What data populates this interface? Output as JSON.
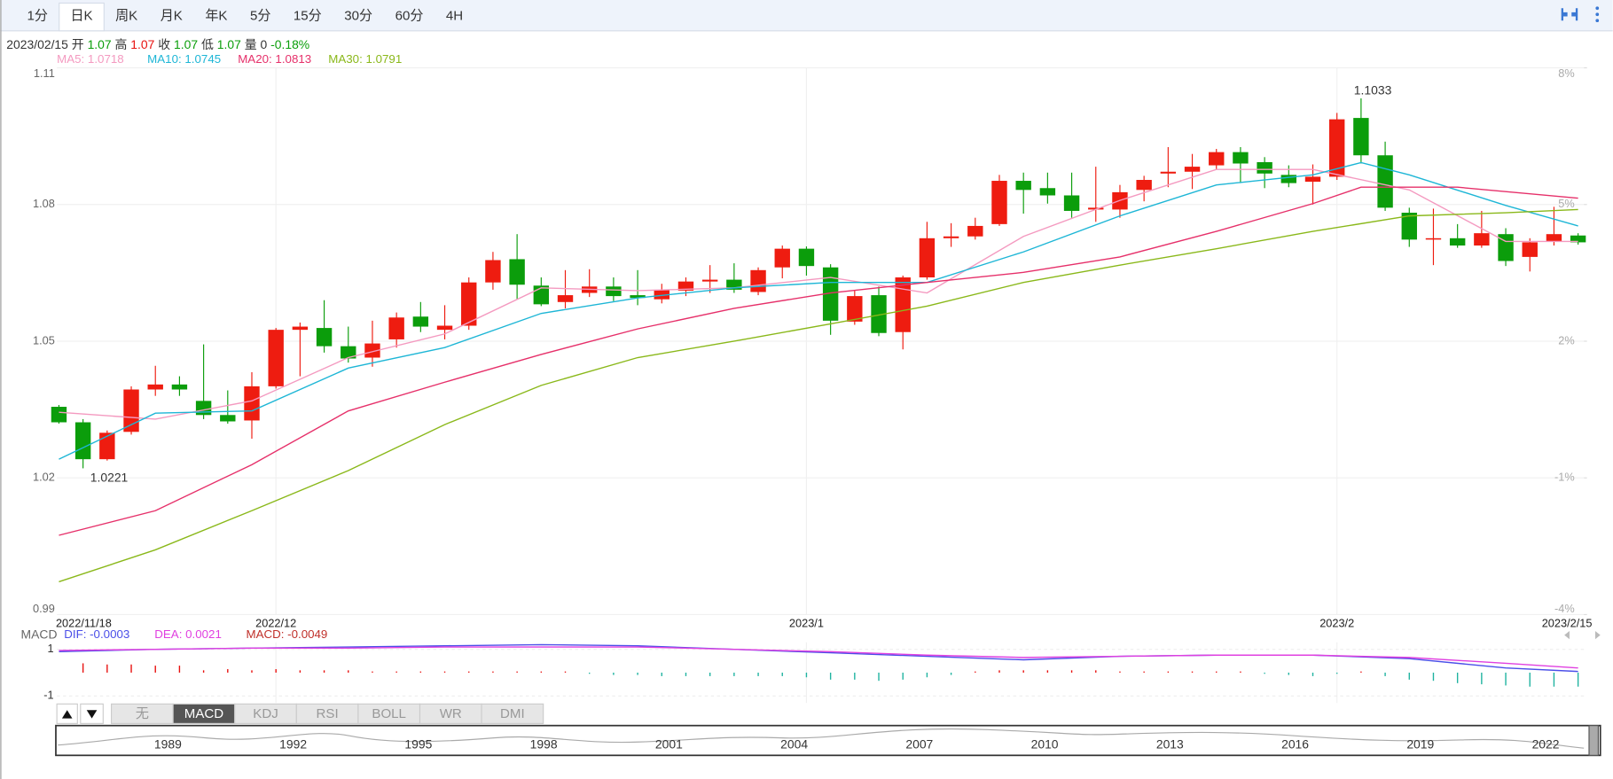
{
  "toolbar": {
    "periods": [
      "1分",
      "日K",
      "周K",
      "月K",
      "年K",
      "5分",
      "15分",
      "30分",
      "60分",
      "4H"
    ],
    "active": "日K"
  },
  "quote": {
    "date": "2023/02/15",
    "fields": [
      {
        "label": "开",
        "value": 1.07,
        "color": "#0a9e0a"
      },
      {
        "label": "高",
        "value": 1.07,
        "color": "#e8110f"
      },
      {
        "label": "收",
        "value": 1.07,
        "color": "#0a9e0a"
      },
      {
        "label": "低",
        "value": 1.07,
        "color": "#0a9e0a"
      },
      {
        "label": "量",
        "value": 0,
        "color": "#333333"
      }
    ],
    "change": "-0.18%",
    "change_color": "#0a9e0a"
  },
  "chart_data": [
    {
      "type": "candlestick",
      "categories": [
        "2022/11/18",
        null,
        null,
        null,
        null,
        null,
        null,
        null,
        null,
        "2022/12",
        null,
        null,
        null,
        null,
        null,
        null,
        null,
        null,
        null,
        null,
        null,
        null,
        null,
        null,
        null,
        null,
        null,
        null,
        null,
        null,
        null,
        "2023/1",
        null,
        null,
        null,
        null,
        null,
        null,
        null,
        null,
        null,
        null,
        null,
        null,
        null,
        null,
        null,
        null,
        null,
        null,
        null,
        null,
        null,
        "2023/2",
        null,
        null,
        null,
        null,
        null,
        null,
        null,
        null,
        null,
        "2023/2/15"
      ],
      "open": [
        1.0356,
        1.0322,
        1.0241,
        1.0301,
        1.0394,
        1.0405,
        1.0369,
        1.0338,
        1.0326,
        1.0401,
        1.0525,
        1.0529,
        1.0489,
        1.0464,
        1.0504,
        1.0554,
        1.0525,
        1.0534,
        1.0629,
        1.068,
        1.0622,
        1.0586,
        1.0606,
        1.062,
        1.0601,
        1.0592,
        1.0611,
        1.0631,
        1.0635,
        1.0608,
        1.0662,
        1.0703,
        1.0662,
        1.0543,
        1.0601,
        1.052,
        1.064,
        1.0726,
        1.073,
        1.0757,
        1.0852,
        1.0836,
        1.082,
        1.0789,
        1.0789,
        1.0832,
        1.0868,
        1.0872,
        1.0886,
        1.0915,
        1.0893,
        1.0865,
        1.085,
        1.0861,
        1.099,
        1.0908,
        1.0782,
        1.0723,
        1.0726,
        1.071,
        1.0735,
        1.0685,
        1.0719,
        1.0732
      ],
      "high": [
        1.036,
        1.0329,
        1.0304,
        1.0401,
        1.0446,
        1.0423,
        1.0493,
        1.0392,
        1.0432,
        1.0529,
        1.0541,
        1.059,
        1.0532,
        1.0545,
        1.0563,
        1.0586,
        1.0579,
        1.064,
        1.0696,
        1.0735,
        1.064,
        1.0656,
        1.0658,
        1.064,
        1.0656,
        1.0626,
        1.064,
        1.0667,
        1.0671,
        1.0662,
        1.071,
        1.0708,
        1.0669,
        1.0611,
        1.062,
        1.0644,
        1.0762,
        1.0759,
        1.0771,
        1.0865,
        1.087,
        1.087,
        1.087,
        1.0883,
        1.0843,
        1.0863,
        1.0926,
        1.0911,
        1.0922,
        1.0926,
        1.0904,
        1.0886,
        1.0888,
        1.1001,
        1.1033,
        1.0938,
        1.0793,
        1.0791,
        1.0757,
        1.0786,
        1.0748,
        1.0726,
        1.0795,
        1.0737
      ],
      "low": [
        1.0319,
        1.0221,
        1.0238,
        1.0295,
        1.038,
        1.038,
        1.0329,
        1.0319,
        1.0286,
        1.0396,
        1.0423,
        1.0475,
        1.0453,
        1.0444,
        1.0486,
        1.052,
        1.0504,
        1.0525,
        1.0613,
        1.0592,
        1.0577,
        1.0572,
        1.0597,
        1.0588,
        1.0579,
        1.0583,
        1.0599,
        1.0606,
        1.0606,
        1.0601,
        1.0638,
        1.0644,
        1.0514,
        1.0536,
        1.0511,
        1.0482,
        1.0635,
        1.0707,
        1.0723,
        1.0753,
        1.078,
        1.0802,
        1.0771,
        1.0762,
        1.0771,
        1.0807,
        1.0838,
        1.0834,
        1.0877,
        1.0847,
        1.0836,
        1.0838,
        1.08,
        1.0854,
        1.089,
        1.0786,
        1.0707,
        1.0667,
        1.0705,
        1.0705,
        1.0665,
        1.0653,
        1.071,
        1.0712
      ],
      "close": [
        1.0322,
        1.0241,
        1.0299,
        1.0394,
        1.0405,
        1.0394,
        1.0338,
        1.0324,
        1.0401,
        1.0525,
        1.0532,
        1.0489,
        1.0462,
        1.0495,
        1.0552,
        1.0532,
        1.0534,
        1.0629,
        1.0678,
        1.0624,
        1.0581,
        1.0601,
        1.062,
        1.0599,
        1.0595,
        1.0613,
        1.0631,
        1.0635,
        1.0613,
        1.0656,
        1.0703,
        1.0665,
        1.0545,
        1.0599,
        1.0518,
        1.064,
        1.0726,
        1.073,
        1.0753,
        1.0852,
        1.0832,
        1.082,
        1.0786,
        1.0793,
        1.0827,
        1.0854,
        1.0872,
        1.0883,
        1.0915,
        1.089,
        1.0868,
        1.0847,
        1.0861,
        1.0987,
        1.0908,
        1.0793,
        1.0723,
        1.0726,
        1.071,
        1.0737,
        1.0676,
        1.0717,
        1.0735,
        1.0717
      ],
      "up_color": "#ee1c10",
      "down_color": "#0b9d0b",
      "series": [
        {
          "name": "MA5: 1.0718",
          "color": "#f49ac0",
          "x": [
            0,
            4,
            8,
            12,
            16,
            20,
            24,
            28,
            32,
            36,
            40,
            44,
            48,
            52,
            56,
            60,
            63
          ],
          "values": [
            1.0344,
            1.0329,
            1.0369,
            1.0464,
            1.0516,
            1.0617,
            1.0611,
            1.0617,
            1.064,
            1.0606,
            1.073,
            1.0809,
            1.0877,
            1.0877,
            1.0832,
            1.0719,
            1.0719
          ]
        },
        {
          "name": "MA10: 1.0745",
          "color": "#1eb6d6",
          "x": [
            0,
            4,
            8,
            12,
            16,
            20,
            24,
            28,
            32,
            36,
            40,
            44,
            48,
            52,
            54,
            56,
            60,
            63
          ],
          "values": [
            1.0241,
            1.0342,
            1.0347,
            1.0441,
            1.0486,
            1.0561,
            1.0595,
            1.0617,
            1.0629,
            1.0629,
            1.0696,
            1.0775,
            1.0843,
            1.0865,
            1.0892,
            1.0865,
            1.0798,
            1.0753
          ]
        },
        {
          "name": "MA20: 1.0813",
          "color": "#e6306a",
          "x": [
            0,
            4,
            8,
            12,
            16,
            20,
            24,
            28,
            32,
            36,
            40,
            44,
            48,
            52,
            54,
            58,
            63
          ],
          "values": [
            1.0074,
            1.0128,
            1.0229,
            1.0347,
            1.041,
            1.0471,
            1.0527,
            1.0572,
            1.0606,
            1.0629,
            1.0651,
            1.0685,
            1.0741,
            1.0802,
            1.0838,
            1.0838,
            1.0814
          ]
        },
        {
          "name": "MA30: 1.0791",
          "color": "#8ab81a",
          "x": [
            0,
            4,
            8,
            12,
            16,
            20,
            24,
            28,
            32,
            36,
            40,
            44,
            48,
            52,
            56,
            60,
            63
          ],
          "values": [
            0.9972,
            1.0042,
            1.0128,
            1.0216,
            1.0317,
            1.0403,
            1.0464,
            1.05,
            1.0538,
            1.0577,
            1.0629,
            1.0667,
            1.0703,
            1.0741,
            1.0775,
            1.0782,
            1.0789
          ]
        }
      ],
      "annotations": {
        "low": "1.0221",
        "high": "1.1033"
      },
      "ylim": [
        0.99,
        1.11
      ],
      "yticks": [
        0.99,
        1.02,
        1.05,
        1.08,
        1.11
      ],
      "y2lim": [
        -4,
        8
      ],
      "y2ticks": [
        {
          "value": -4,
          "label": "-4%"
        },
        {
          "value": -1,
          "label": "-1%"
        },
        {
          "value": 2,
          "label": "2%"
        },
        {
          "value": 5,
          "label": "5%"
        },
        {
          "value": 8,
          "label": "8%"
        }
      ],
      "grid": true
    },
    {
      "type": "macd",
      "title": "MACD",
      "series": [
        {
          "name": "DIF: -0.0003",
          "color": "#4a4ee8",
          "x": [
            0,
            4,
            8,
            12,
            16,
            20,
            24,
            28,
            32,
            36,
            40,
            44,
            48,
            52,
            56,
            60,
            63
          ],
          "values": [
            0.9,
            1.0,
            1.05,
            1.1,
            1.15,
            1.2,
            1.15,
            1.0,
            0.85,
            0.7,
            0.55,
            0.7,
            0.75,
            0.75,
            0.6,
            0.2,
            0.05
          ]
        },
        {
          "name": "DEA: 0.0021",
          "color": "#e040e0",
          "x": [
            0,
            4,
            8,
            12,
            16,
            20,
            24,
            28,
            32,
            36,
            40,
            44,
            48,
            52,
            56,
            60,
            63
          ],
          "values": [
            0.95,
            1.0,
            1.05,
            1.05,
            1.1,
            1.1,
            1.1,
            1.0,
            0.9,
            0.75,
            0.65,
            0.7,
            0.75,
            0.75,
            0.65,
            0.4,
            0.2
          ]
        }
      ],
      "histogram": {
        "name": "MACD: -0.0049",
        "color": "#c0302a",
        "up_color": "#e8110f",
        "down_color": "#1fb3a0",
        "values": [
          0,
          0.4,
          0.35,
          0.35,
          0.3,
          0.3,
          0.1,
          0.15,
          0.1,
          0.15,
          0.1,
          0.1,
          0.1,
          0.05,
          0.05,
          0.05,
          0.05,
          0.05,
          0.05,
          0.05,
          0.05,
          0.05,
          -0.05,
          -0.1,
          -0.1,
          -0.15,
          -0.15,
          -0.15,
          -0.15,
          -0.15,
          -0.15,
          -0.2,
          -0.3,
          -0.3,
          -0.35,
          -0.3,
          -0.2,
          -0.1,
          0.05,
          0.1,
          0.1,
          0.1,
          0.1,
          0.1,
          0.05,
          0.05,
          0.05,
          0.05,
          0.05,
          0.05,
          -0.05,
          -0.1,
          -0.15,
          -0.05,
          0.05,
          -0.15,
          -0.3,
          -0.35,
          -0.45,
          -0.5,
          -0.55,
          -0.6,
          -0.6,
          -0.6
        ]
      },
      "ylim": [
        -1.3,
        1.3
      ],
      "yticks": [
        -1,
        1
      ],
      "grid": true
    }
  ],
  "indicator_tabs": {
    "tabs": [
      "无",
      "MACD",
      "KDJ",
      "RSI",
      "BOLL",
      "WR",
      "DMI"
    ],
    "active": "MACD"
  },
  "navigator": {
    "years": [
      "1989",
      "1992",
      "1995",
      "1998",
      "2001",
      "2004",
      "2007",
      "2010",
      "2013",
      "2016",
      "2019",
      "2022"
    ]
  }
}
